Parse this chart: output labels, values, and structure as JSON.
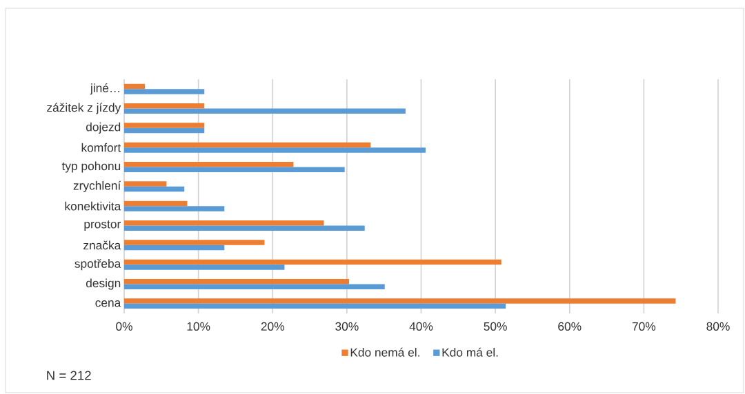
{
  "chart_data": {
    "type": "bar",
    "orientation": "horizontal",
    "categories": [
      "jiné…",
      "zážitek z jízdy",
      "dojezd",
      "komfort",
      "typ pohonu",
      "zrychlení",
      "konektivita",
      "prostor",
      "značka",
      "spotřeba",
      "design",
      "cena"
    ],
    "series": [
      {
        "name": "Kdo nemá el.",
        "color": "#ed7d31",
        "values": [
          2.8,
          10.8,
          10.8,
          33.2,
          22.8,
          5.7,
          8.5,
          26.9,
          18.9,
          50.8,
          30.3,
          74.3
        ]
      },
      {
        "name": "Kdo má el.",
        "color": "#5b9bd5",
        "values": [
          10.8,
          37.9,
          10.8,
          40.6,
          29.7,
          8.1,
          13.5,
          32.4,
          13.5,
          21.6,
          35.1,
          51.4
        ]
      }
    ],
    "xlim": [
      0,
      80
    ],
    "xticks": [
      {
        "value": 0,
        "label": "0%"
      },
      {
        "value": 10,
        "label": "10%"
      },
      {
        "value": 20,
        "label": "20%"
      },
      {
        "value": 30,
        "label": "30%"
      },
      {
        "value": 40,
        "label": "40%"
      },
      {
        "value": 50,
        "label": "50%"
      },
      {
        "value": 60,
        "label": "60%"
      },
      {
        "value": 70,
        "label": "70%"
      },
      {
        "value": 80,
        "label": "80%"
      }
    ],
    "grid": "x",
    "legend": "bottom",
    "annotations": [
      "N = 212"
    ]
  }
}
